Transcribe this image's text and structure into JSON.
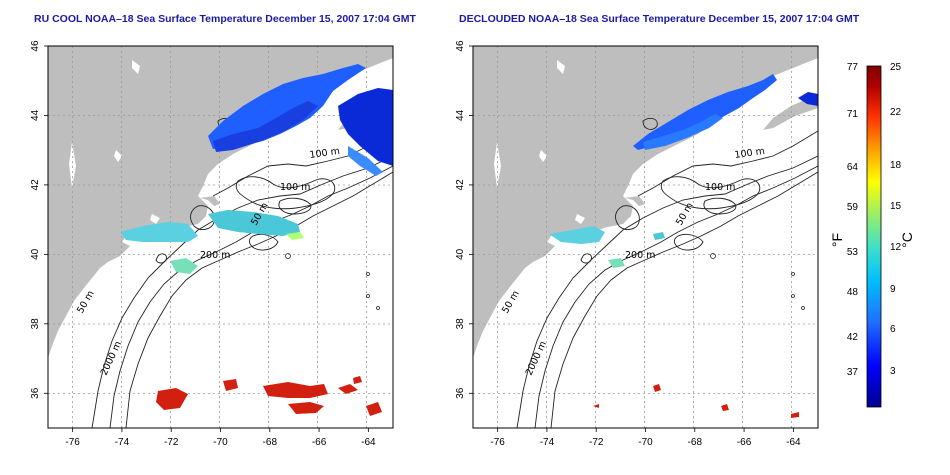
{
  "panels": [
    {
      "title": "RU COOL NOAA–18 Sea Surface Temperature December 15, 2007 17:04 GMT",
      "variant": "raw"
    },
    {
      "title": "DECLOUDED NOAA–18 Sea Surface Temperature December 15, 2007 17:04 GMT",
      "variant": "declouded"
    }
  ],
  "map": {
    "lon_range": [
      -77,
      -63
    ],
    "lat_range": [
      35,
      46
    ],
    "x_ticks": [
      "-76",
      "-74",
      "-72",
      "-70",
      "-68",
      "-66",
      "-64"
    ],
    "y_ticks": [
      "36",
      "38",
      "40",
      "42",
      "44",
      "46"
    ],
    "land_color": "#bebebe",
    "grid": "dotted",
    "contour_labels": [
      "100 m",
      "100 m",
      "50 m",
      "200 m",
      "50 m",
      "2000 m"
    ]
  },
  "colorbar": {
    "fahrenheit_ticks": [
      "77",
      "71",
      "64",
      "59",
      "53",
      "48",
      "42",
      "37"
    ],
    "celsius_ticks": [
      "25",
      "22",
      "18",
      "15",
      "12",
      "9",
      "6",
      "3"
    ],
    "fahrenheit_unit": "°F",
    "celsius_unit": "°C",
    "colors": [
      "#00008f",
      "#0000ff",
      "#1f6fff",
      "#00bfff",
      "#40e0c8",
      "#9fef60",
      "#ffff00",
      "#ffa500",
      "#ff3300",
      "#b20000",
      "#800000"
    ]
  }
}
